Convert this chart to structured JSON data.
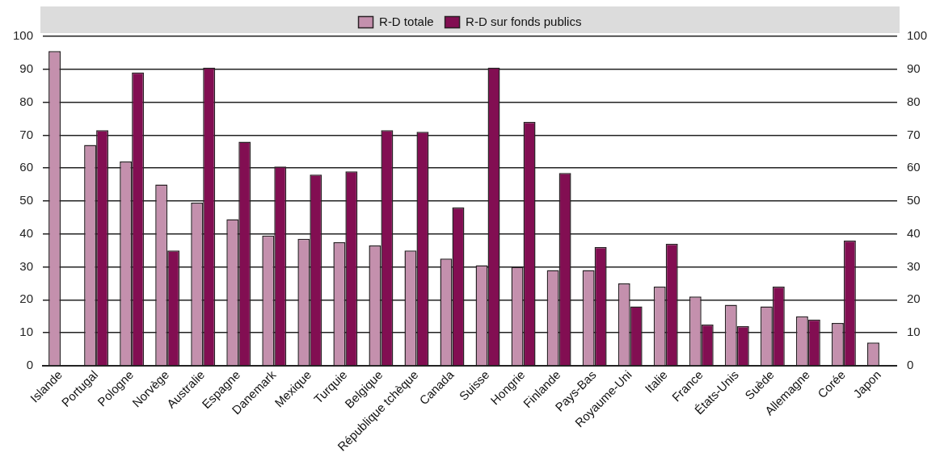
{
  "chart_data": {
    "type": "bar",
    "categories": [
      "Islande",
      "Portugal",
      "Pologne",
      "Norvège",
      "Australie",
      "Espagne",
      "Danemark",
      "Mexique",
      "Turquie",
      "Belgique",
      "République tchèque",
      "Canada",
      "Suisse",
      "Hongrie",
      "Finlande",
      "Pays-Bas",
      "Royaume-Uni",
      "Italie",
      "France",
      "États-Unis",
      "Suède",
      "Allemagne",
      "Corée",
      "Japon"
    ],
    "series": [
      {
        "name": "R-D totale",
        "color": "#c490ad",
        "values": [
          95.5,
          67,
          62,
          55,
          49.5,
          44.5,
          39.5,
          38.5,
          37.5,
          36.5,
          35,
          32.5,
          30.5,
          30,
          29,
          29,
          25,
          24,
          21,
          18.5,
          18,
          15,
          13,
          7
        ]
      },
      {
        "name": "R-D sur fonds publics",
        "color": "#820e52",
        "values": [
          null,
          71.5,
          89,
          35,
          90.5,
          68,
          60.5,
          58,
          59,
          71.5,
          71,
          48,
          90.5,
          74,
          58.5,
          36,
          18,
          37,
          12.5,
          12,
          24,
          14,
          38,
          null
        ]
      }
    ],
    "ylim": [
      0,
      100
    ],
    "yticks": [
      0,
      10,
      20,
      30,
      40,
      50,
      60,
      70,
      80,
      90,
      100
    ],
    "y2lim": [
      0,
      100
    ],
    "y2ticks": [
      0,
      10,
      20,
      30,
      40,
      50,
      60,
      70,
      80,
      90,
      100
    ],
    "grid": "y",
    "legend": "top"
  }
}
